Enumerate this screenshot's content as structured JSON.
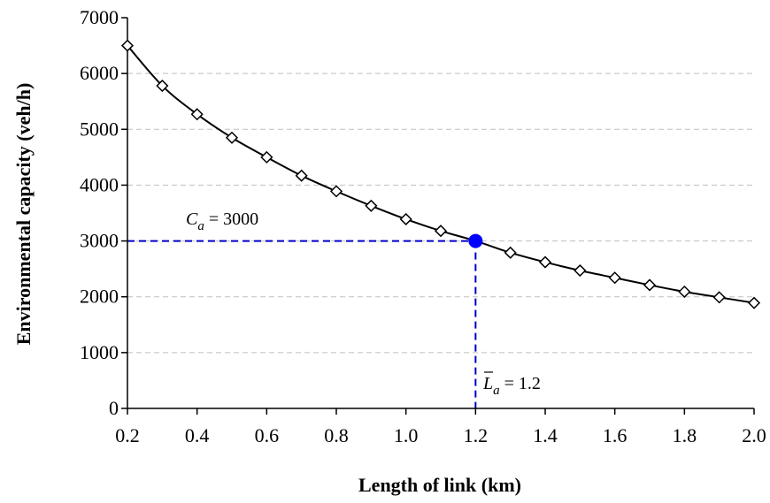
{
  "chart_data": {
    "type": "line",
    "xlabel": "Length of link (km)",
    "ylabel": "Environmental capacity (veh/h)",
    "xlim": [
      0.2,
      2.0
    ],
    "ylim": [
      0,
      7000
    ],
    "x_ticks": [
      "0.2",
      "0.4",
      "0.6",
      "0.8",
      "1.0",
      "1.2",
      "1.4",
      "1.6",
      "1.8",
      "2.0"
    ],
    "y_ticks": [
      "0",
      "1000",
      "2000",
      "3000",
      "4000",
      "5000",
      "6000",
      "7000"
    ],
    "grid": "horizontal dashed",
    "series": [
      {
        "marker": "diamond",
        "x": [
          0.2,
          0.3,
          0.4,
          0.5,
          0.6,
          0.7,
          0.8,
          0.9,
          1.0,
          1.1,
          1.2,
          1.3,
          1.4,
          1.5,
          1.6,
          1.7,
          1.8,
          1.9,
          2.0
        ],
        "y": [
          6500,
          5780,
          5270,
          4850,
          4500,
          4170,
          3890,
          3630,
          3390,
          3180,
          3000,
          2790,
          2620,
          2470,
          2340,
          2210,
          2090,
          1990,
          1890
        ]
      }
    ],
    "highlight_point": {
      "x": 1.2,
      "y": 3000,
      "color": "#0000ff"
    },
    "annotations": {
      "capacity": {
        "symbol": "C",
        "subscript": "a",
        "text": " = 3000"
      },
      "length": {
        "symbol": "L",
        "subscript": "a",
        "text": " = 1.2"
      }
    },
    "colors": {
      "line": "#000000",
      "guide": "#0000cc",
      "grid": "#bfbfbf"
    }
  }
}
